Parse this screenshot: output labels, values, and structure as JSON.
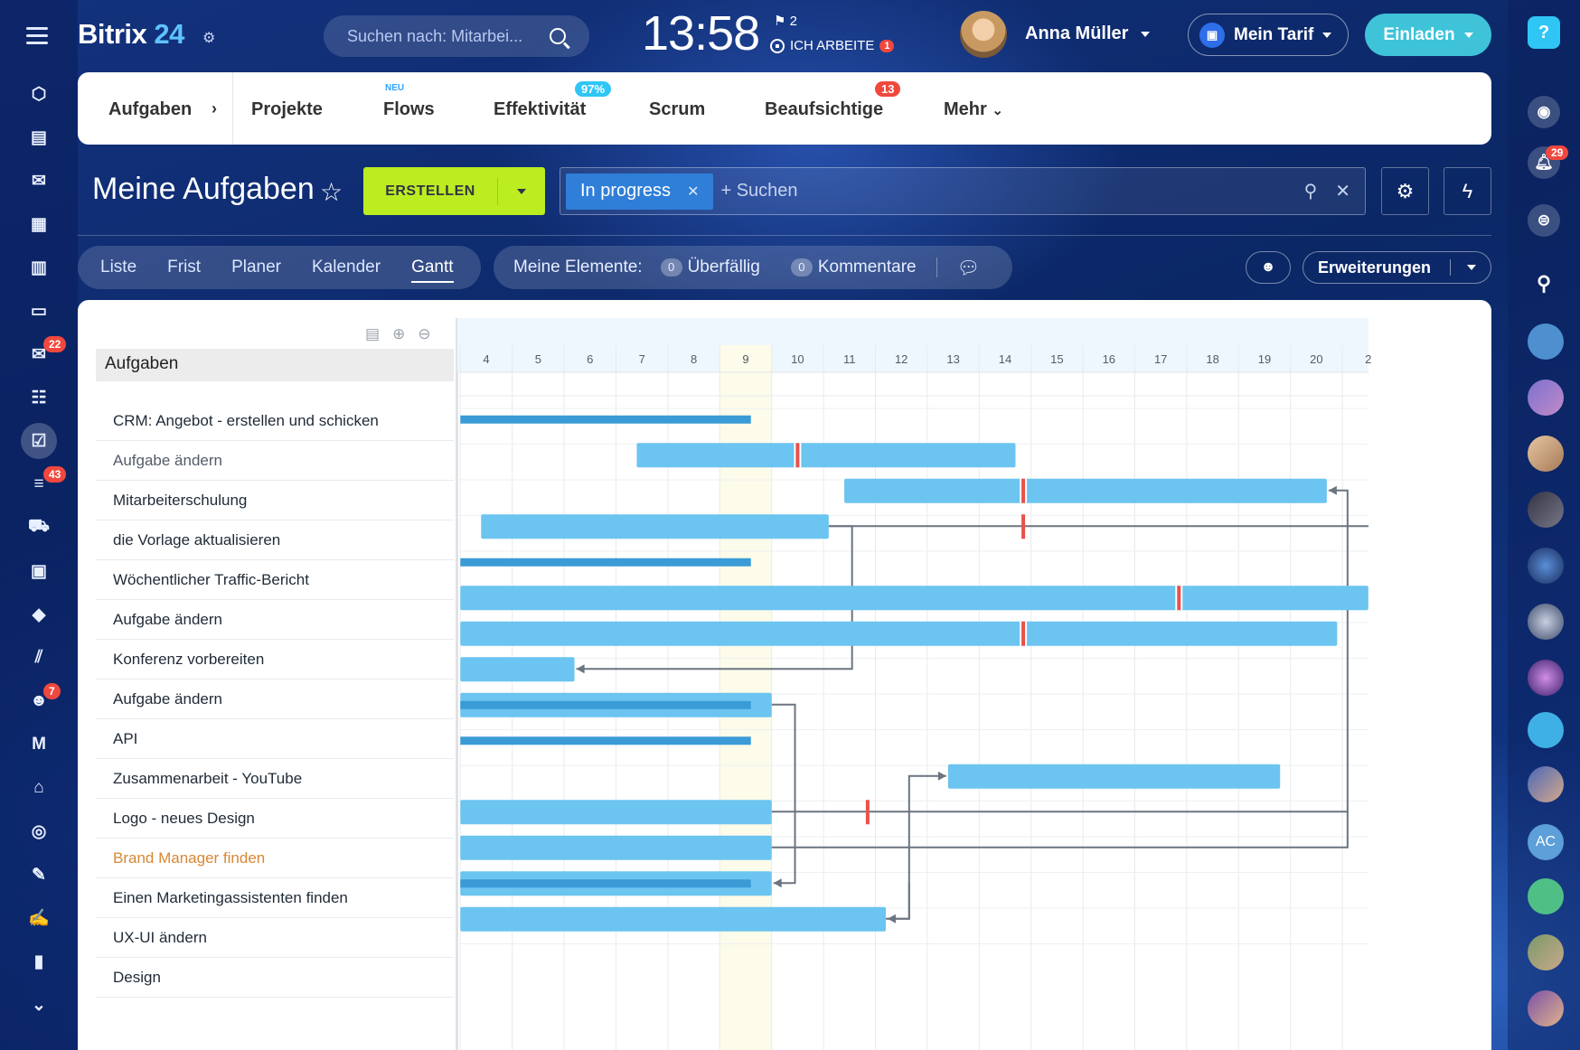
{
  "app": {
    "logo_word": "Bitrix",
    "logo_num": "24"
  },
  "topbar": {
    "search_placeholder": "Suchen nach: Mitarbei...",
    "clock": "13:58",
    "flags_count": "2",
    "working_label": "ICH ARBEITE",
    "working_badge": "1",
    "user_name": "Anna Müller",
    "tariff_label": "Mein Tarif",
    "invite_label": "Einladen"
  },
  "left_nav": [
    {
      "icon": "share-icon",
      "glyph": "⬡"
    },
    {
      "icon": "feed-icon",
      "glyph": "▤"
    },
    {
      "icon": "chat-icon",
      "glyph": "✉"
    },
    {
      "icon": "calendar-icon",
      "glyph": "▦"
    },
    {
      "icon": "document-icon",
      "glyph": "▥"
    },
    {
      "icon": "drive-icon",
      "glyph": "▭"
    },
    {
      "icon": "mail-icon",
      "glyph": "✉",
      "badge": "22"
    },
    {
      "icon": "groups-icon",
      "glyph": "☷"
    },
    {
      "icon": "tasks-icon",
      "glyph": "☑",
      "active": true
    },
    {
      "icon": "funnel-icon",
      "glyph": "≡",
      "badge": "43"
    },
    {
      "icon": "cart-icon",
      "glyph": "⛟"
    },
    {
      "icon": "contact-card-icon",
      "glyph": "▣"
    },
    {
      "icon": "box-icon",
      "glyph": "◆"
    },
    {
      "icon": "marketing-icon",
      "glyph": "⫽"
    },
    {
      "icon": "robot-icon",
      "glyph": "☻",
      "badge": "7"
    },
    {
      "icon": "m-icon",
      "glyph": "M"
    },
    {
      "icon": "bank-icon",
      "glyph": "⌂"
    },
    {
      "icon": "target-icon",
      "glyph": "◎"
    },
    {
      "icon": "edit-list-icon",
      "glyph": "✎"
    },
    {
      "icon": "sign-icon",
      "glyph": "✍"
    },
    {
      "icon": "analytics-icon",
      "glyph": "▮"
    },
    {
      "icon": "more-down-icon",
      "glyph": "⌄"
    }
  ],
  "right_nav": {
    "help": "?",
    "notifications_badge": "29",
    "avatar_initials": "AC"
  },
  "nav_tabs": {
    "aufgaben": "Aufgaben",
    "projekte": "Projekte",
    "flows": "Flows",
    "flows_new": "NEU",
    "effektivitaet": "Effektivität",
    "effektivitaet_badge": "97%",
    "scrum": "Scrum",
    "beaufsichtige": "Beaufsichtige",
    "beaufsichtige_badge": "13",
    "mehr": "Mehr"
  },
  "page": {
    "title": "Meine Aufgaben",
    "create_label": "ERSTELLEN",
    "filter_chip": "In progress",
    "filter_placeholder": "+ Suchen"
  },
  "views": {
    "tabs": [
      "Liste",
      "Frist",
      "Planer",
      "Kalender",
      "Gantt"
    ],
    "active": "Gantt",
    "elements_label": "Meine Elemente:",
    "overdue_count": "0",
    "overdue_label": "Überfällig",
    "comments_count": "0",
    "comments_label": "Kommentare",
    "extensions_label": "Erweiterungen"
  },
  "gantt": {
    "header_label": "Aufgaben",
    "days": [
      "4",
      "5",
      "6",
      "7",
      "8",
      "9",
      "10",
      "11",
      "12",
      "13",
      "14",
      "15",
      "16",
      "17",
      "18",
      "19",
      "20",
      "2"
    ],
    "today_day": "9",
    "tasks": [
      {
        "name": "CRM: Angebot - erstellen und schicken",
        "style": "normal"
      },
      {
        "name": "Aufgabe ändern",
        "style": "soft"
      },
      {
        "name": "Mitarbeiterschulung",
        "style": "normal"
      },
      {
        "name": "die Vorlage aktualisieren",
        "style": "normal"
      },
      {
        "name": "Wöchentlicher Traffic-Bericht",
        "style": "normal"
      },
      {
        "name": "Aufgabe ändern",
        "style": "normal"
      },
      {
        "name": "Konferenz vorbereiten",
        "style": "normal"
      },
      {
        "name": "Aufgabe ändern",
        "style": "normal"
      },
      {
        "name": "API",
        "style": "normal"
      },
      {
        "name": "Zusammenarbeit - YouTube",
        "style": "normal"
      },
      {
        "name": "Logo - neues Design",
        "style": "normal"
      },
      {
        "name": "Brand Manager finden",
        "style": "orange"
      },
      {
        "name": "Einen Marketingassistenten finden",
        "style": "normal"
      },
      {
        "name": "UX-UI ändern",
        "style": "normal"
      },
      {
        "name": "Design",
        "style": "normal"
      }
    ],
    "bars": [
      {
        "row": 0,
        "start": 3.5,
        "end": 9.1,
        "kind": "thin"
      },
      {
        "row": 1,
        "start": 6.9,
        "end": 14.2,
        "deadline": 10.0
      },
      {
        "row": 2,
        "start": 10.9,
        "end": 20.2,
        "deadline": 14.35
      },
      {
        "row": 3,
        "start": 3.9,
        "end": 10.6,
        "deadline_alone": 14.35
      },
      {
        "row": 4,
        "start": 3.5,
        "end": 9.1,
        "kind": "thin"
      },
      {
        "row": 5,
        "start": 3.5,
        "end": 21.0,
        "deadline": 17.35
      },
      {
        "row": 6,
        "start": 3.5,
        "end": 20.4,
        "deadline": 14.35
      },
      {
        "row": 7,
        "start": 3.5,
        "end": 5.7
      },
      {
        "row": 8,
        "start": 3.5,
        "end": 9.5,
        "kind": "double"
      },
      {
        "row": 9,
        "start": 3.5,
        "end": 9.1,
        "kind": "thin"
      },
      {
        "row": 10,
        "start": 12.9,
        "end": 19.3
      },
      {
        "row": 11,
        "start": 3.5,
        "end": 9.5,
        "deadline_alone": 11.35
      },
      {
        "row": 12,
        "start": 3.5,
        "end": 9.5
      },
      {
        "row": 13,
        "start": 3.5,
        "end": 9.5,
        "kind": "double"
      },
      {
        "row": 14,
        "start": 3.5,
        "end": 11.7
      }
    ],
    "colors": {
      "bar": "#6cc4f0",
      "bar_dark": "#3a9bd6",
      "deadline": "#e8524a",
      "today": "#fdfbe9",
      "link": "#6b7480"
    }
  }
}
